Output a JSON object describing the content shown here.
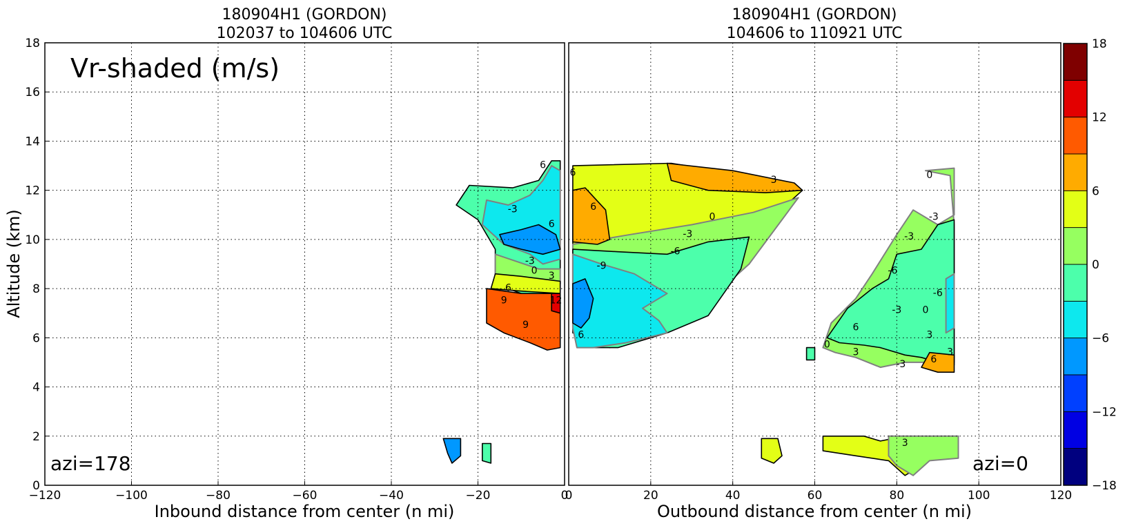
{
  "chart_data": [
    {
      "type": "heatmap",
      "title_line1": "180904H1 (GORDON)",
      "title_line2": "102037 to 104606 UTC",
      "xlabel": "Inbound distance from center (n mi)",
      "ylabel": "Altitude (km)",
      "xlim": [
        -120,
        0
      ],
      "ylim": [
        0,
        18
      ],
      "x_ticks": [
        "−120",
        "−100",
        "−80",
        "−60",
        "−40",
        "−20",
        "0"
      ],
      "y_ticks": [
        "0",
        "2",
        "4",
        "6",
        "8",
        "10",
        "12",
        "14",
        "16",
        "18"
      ],
      "annotation": "Vr-shaded (m/s)",
      "azimuth_label": "azi=178",
      "grid": true,
      "contour_labels": [
        "6",
        "-3",
        "6",
        "-3",
        "0",
        "3",
        "6",
        "9",
        "12",
        "9"
      ],
      "regions": [
        {
          "level": -3,
          "points": [
            [
              -25,
              11.4
            ],
            [
              -22,
              12.2
            ],
            [
              -12,
              12.1
            ],
            [
              -6,
              12.4
            ],
            [
              -3,
              13.2
            ],
            [
              -1,
              13.2
            ],
            [
              -1,
              6.8
            ],
            [
              -6,
              7.0
            ],
            [
              -10,
              7.8
            ],
            [
              -16,
              8.2
            ],
            [
              -16,
              9.6
            ],
            [
              -20,
              10.8
            ]
          ]
        },
        {
          "level": -6,
          "points": [
            [
              -18,
              11.6
            ],
            [
              -13,
              11.4
            ],
            [
              -8,
              11.8
            ],
            [
              -5,
              12.4
            ],
            [
              -3,
              13.0
            ],
            [
              -1,
              12.8
            ],
            [
              -1,
              9.2
            ],
            [
              -5,
              9.0
            ],
            [
              -8,
              9.4
            ],
            [
              -14,
              9.8
            ],
            [
              -19,
              10.6
            ]
          ]
        },
        {
          "level": -9,
          "points": [
            [
              -15,
              10.2
            ],
            [
              -10,
              10.4
            ],
            [
              -6,
              10.6
            ],
            [
              -2,
              10.2
            ],
            [
              -1,
              9.6
            ],
            [
              -5,
              9.4
            ],
            [
              -10,
              9.6
            ],
            [
              -14,
              9.8
            ]
          ]
        },
        {
          "level": 0,
          "points": [
            [
              -16,
              9.4
            ],
            [
              -11,
              9.1
            ],
            [
              -6,
              8.8
            ],
            [
              -1,
              8.8
            ],
            [
              -1,
              8.2
            ],
            [
              -10,
              8.2
            ],
            [
              -16,
              8.6
            ]
          ]
        },
        {
          "level": 3,
          "points": [
            [
              -16,
              8.6
            ],
            [
              -10,
              8.5
            ],
            [
              -1,
              8.3
            ],
            [
              -1,
              7.8
            ],
            [
              -10,
              7.9
            ],
            [
              -17,
              8.0
            ]
          ]
        },
        {
          "level": 9,
          "points": [
            [
              -18,
              8.0
            ],
            [
              -10,
              7.8
            ],
            [
              -1,
              7.8
            ],
            [
              -1,
              5.6
            ],
            [
              -4,
              5.5
            ],
            [
              -8,
              5.8
            ],
            [
              -14,
              6.2
            ],
            [
              -18,
              6.6
            ]
          ]
        },
        {
          "level": 12,
          "points": [
            [
              -3,
              7.8
            ],
            [
              -1,
              7.8
            ],
            [
              -1,
              7.0
            ],
            [
              -3,
              7.1
            ]
          ]
        },
        {
          "level": -9,
          "points": [
            [
              -28,
              1.9
            ],
            [
              -24,
              1.9
            ],
            [
              -24,
              1.2
            ],
            [
              -26,
              0.9
            ],
            [
              -27,
              1.3
            ]
          ]
        },
        {
          "level": -3,
          "points": [
            [
              -19,
              1.7
            ],
            [
              -17,
              1.7
            ],
            [
              -17,
              0.9
            ],
            [
              -19,
              1.0
            ]
          ]
        }
      ]
    },
    {
      "type": "heatmap",
      "title_line1": "180904H1 (GORDON)",
      "title_line2": "104606 to 110921 UTC",
      "xlabel": "Outbound distance from center (n mi)",
      "ylabel": "",
      "xlim": [
        0,
        120
      ],
      "ylim": [
        0,
        18
      ],
      "x_ticks": [
        "0",
        "20",
        "40",
        "60",
        "80",
        "100",
        "120"
      ],
      "azimuth_label": "azi=0",
      "grid": true,
      "contour_labels": [
        "6",
        "6",
        "3",
        "0",
        "-3",
        "-6",
        "-9",
        "6",
        "0",
        "-3",
        "-3",
        "-6",
        "-3",
        "-6",
        "0",
        "3",
        "3",
        "6",
        "-3",
        "6",
        "0",
        "3",
        "3"
      ],
      "regions": [
        {
          "level": 3,
          "points": [
            [
              1,
              13.0
            ],
            [
              25,
              13.1
            ],
            [
              40,
              12.7
            ],
            [
              54,
              12.3
            ],
            [
              57,
              12.0
            ],
            [
              45,
              10.2
            ],
            [
              30,
              8.6
            ],
            [
              22,
              6.2
            ],
            [
              10,
              5.6
            ],
            [
              1,
              6.2
            ]
          ]
        },
        {
          "level": 0,
          "points": [
            [
              1,
              9.8
            ],
            [
              15,
              10.2
            ],
            [
              30,
              10.6
            ],
            [
              45,
              11.1
            ],
            [
              56,
              11.7
            ],
            [
              44,
              9.0
            ],
            [
              32,
              7.2
            ],
            [
              20,
              6.4
            ],
            [
              1,
              7.0
            ]
          ]
        },
        {
          "level": -3,
          "points": [
            [
              1,
              9.6
            ],
            [
              12,
              9.5
            ],
            [
              24,
              9.4
            ],
            [
              34,
              9.9
            ],
            [
              44,
              10.1
            ],
            [
              42,
              8.8
            ],
            [
              34,
              6.9
            ],
            [
              24,
              6.2
            ],
            [
              12,
              5.6
            ],
            [
              2,
              5.6
            ],
            [
              1,
              6.4
            ]
          ]
        },
        {
          "level": -6,
          "points": [
            [
              1,
              9.4
            ],
            [
              8,
              9.0
            ],
            [
              16,
              8.6
            ],
            [
              20,
              8.2
            ],
            [
              24,
              7.8
            ],
            [
              18,
              7.2
            ],
            [
              22,
              6.7
            ],
            [
              24,
              6.2
            ],
            [
              14,
              5.8
            ],
            [
              6,
              5.6
            ],
            [
              2,
              5.6
            ],
            [
              1,
              6.4
            ]
          ]
        },
        {
          "level": -9,
          "points": [
            [
              1,
              8.2
            ],
            [
              4,
              8.4
            ],
            [
              6,
              7.6
            ],
            [
              5,
              6.8
            ],
            [
              3,
              6.4
            ],
            [
              1,
              6.6
            ]
          ]
        },
        {
          "level": 6,
          "points": [
            [
              1,
              12.0
            ],
            [
              4,
              12.1
            ],
            [
              9,
              11.2
            ],
            [
              10,
              10.0
            ],
            [
              7,
              9.8
            ],
            [
              1,
              9.9
            ]
          ]
        },
        {
          "level": 6,
          "points": [
            [
              24,
              13.1
            ],
            [
              40,
              12.8
            ],
            [
              55,
              12.3
            ],
            [
              57,
              12.0
            ],
            [
              48,
              11.9
            ],
            [
              34,
              12.0
            ],
            [
              25,
              12.4
            ]
          ]
        },
        {
          "level": 0,
          "points": [
            [
              87,
              12.8
            ],
            [
              94,
              12.9
            ],
            [
              94,
              11.0
            ],
            [
              90,
              10.6
            ],
            [
              84,
              11.2
            ],
            [
              80,
              10.2
            ],
            [
              74,
              8.6
            ],
            [
              70,
              7.6
            ],
            [
              64,
              6.6
            ],
            [
              62,
              5.6
            ],
            [
              65,
              5.4
            ],
            [
              70,
              5.2
            ],
            [
              76,
              4.8
            ],
            [
              82,
              5.0
            ],
            [
              88,
              5.0
            ],
            [
              94,
              4.9
            ],
            [
              94,
              10.6
            ],
            [
              93,
              12.6
            ]
          ]
        },
        {
          "level": -3,
          "points": [
            [
              90,
              10.6
            ],
            [
              94,
              10.8
            ],
            [
              94,
              5.0
            ],
            [
              90,
              5.0
            ],
            [
              86,
              5.2
            ],
            [
              82,
              5.3
            ],
            [
              76,
              5.6
            ],
            [
              72,
              5.7
            ],
            [
              66,
              5.8
            ],
            [
              63,
              6.0
            ],
            [
              68,
              7.2
            ],
            [
              74,
              8.0
            ],
            [
              78,
              8.4
            ],
            [
              80,
              9.4
            ],
            [
              86,
              9.6
            ]
          ]
        },
        {
          "level": -6,
          "points": [
            [
              92,
              8.4
            ],
            [
              94,
              8.6
            ],
            [
              94,
              6.4
            ],
            [
              92,
              6.2
            ]
          ]
        },
        {
          "level": 6,
          "points": [
            [
              88,
              5.4
            ],
            [
              94,
              5.3
            ],
            [
              94,
              4.6
            ],
            [
              90,
              4.6
            ],
            [
              86,
              4.8
            ]
          ]
        },
        {
          "level": -3,
          "points": [
            [
              58,
              5.6
            ],
            [
              60,
              5.6
            ],
            [
              60,
              5.1
            ],
            [
              58,
              5.1
            ]
          ]
        },
        {
          "level": 3,
          "points": [
            [
              47,
              1.9
            ],
            [
              51,
              1.9
            ],
            [
              52,
              1.2
            ],
            [
              50,
              0.9
            ],
            [
              47,
              1.1
            ]
          ]
        },
        {
          "level": 3,
          "points": [
            [
              62,
              2.0
            ],
            [
              72,
              2.0
            ],
            [
              76,
              1.8
            ],
            [
              82,
              2.0
            ],
            [
              88,
              2.0
            ],
            [
              95,
              2.0
            ],
            [
              95,
              1.3
            ],
            [
              88,
              1.0
            ],
            [
              82,
              0.4
            ],
            [
              78,
              1.0
            ],
            [
              70,
              1.2
            ],
            [
              62,
              1.4
            ]
          ]
        },
        {
          "level": 0,
          "points": [
            [
              78,
              2.0
            ],
            [
              88,
              2.0
            ],
            [
              95,
              2.0
            ],
            [
              95,
              1.1
            ],
            [
              88,
              1.0
            ],
            [
              84,
              0.4
            ],
            [
              80,
              0.8
            ],
            [
              78,
              1.2
            ]
          ]
        }
      ]
    }
  ],
  "colorbar": {
    "levels": [
      -18,
      -15,
      -12,
      -9,
      -6,
      -3,
      0,
      3,
      6,
      9,
      12,
      15,
      18
    ],
    "colors": [
      "#00007f",
      "#0000e3",
      "#0040ff",
      "#0098ff",
      "#0de8ee",
      "#4cffab",
      "#96ff60",
      "#e3ff16",
      "#ffab00",
      "#ff5a00",
      "#e30000",
      "#7f0000"
    ],
    "tick_labels": [
      "−18",
      "−12",
      "−6",
      "0",
      "6",
      "12",
      "18"
    ],
    "tick_values": [
      -18,
      -12,
      -6,
      0,
      6,
      12,
      18
    ]
  }
}
